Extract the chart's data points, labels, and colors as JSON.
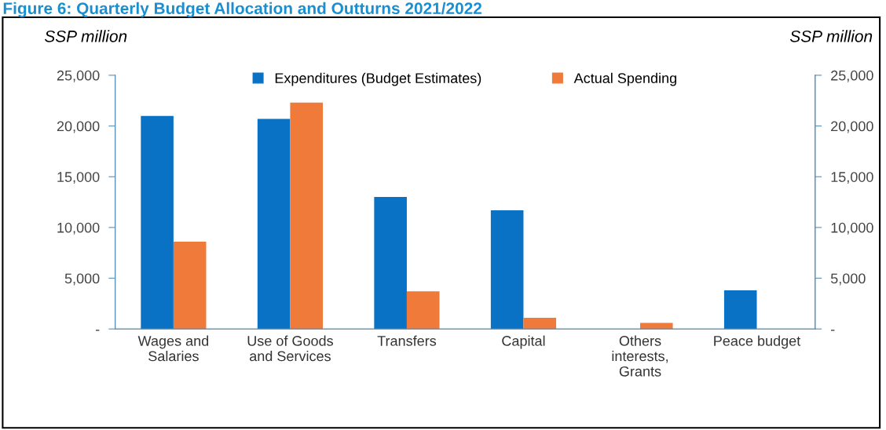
{
  "chart_data": {
    "type": "bar",
    "title": "Figure 6: Quarterly Budget Allocation and Outturns 2021/2022",
    "ylabel": "SSP million",
    "y2label": "SSP million",
    "categories": [
      "Wages and\nSalaries",
      "Use of Goods\nand Services",
      "Transfers",
      "Capital",
      "Others\ninterests,\nGrants",
      "Peace budget"
    ],
    "series": [
      {
        "name": "Expenditures (Budget Estimates)",
        "color": "#0a72c4",
        "values": [
          21000,
          20700,
          13000,
          11700,
          0,
          3800
        ]
      },
      {
        "name": "Actual Spending",
        "color": "#f07a3a",
        "values": [
          8600,
          22300,
          3700,
          1100,
          600,
          0
        ]
      }
    ],
    "ylim": [
      0,
      25000
    ],
    "yticks": [
      {
        "value": 0,
        "label": "-"
      },
      {
        "value": 5000,
        "label": "5,000"
      },
      {
        "value": 10000,
        "label": "10,000"
      },
      {
        "value": 15000,
        "label": "15,000"
      },
      {
        "value": 20000,
        "label": "20,000"
      },
      {
        "value": 25000,
        "label": "25,000"
      }
    ],
    "y2lim": [
      0,
      25000
    ],
    "y2ticks": [
      {
        "value": 0,
        "label": "-"
      },
      {
        "value": 5000,
        "label": "5,000"
      },
      {
        "value": 10000,
        "label": "10,000"
      },
      {
        "value": 15000,
        "label": "15,000"
      },
      {
        "value": 20000,
        "label": "20,000"
      },
      {
        "value": 25000,
        "label": "25,000"
      }
    ],
    "legend": "top",
    "grid": false
  }
}
